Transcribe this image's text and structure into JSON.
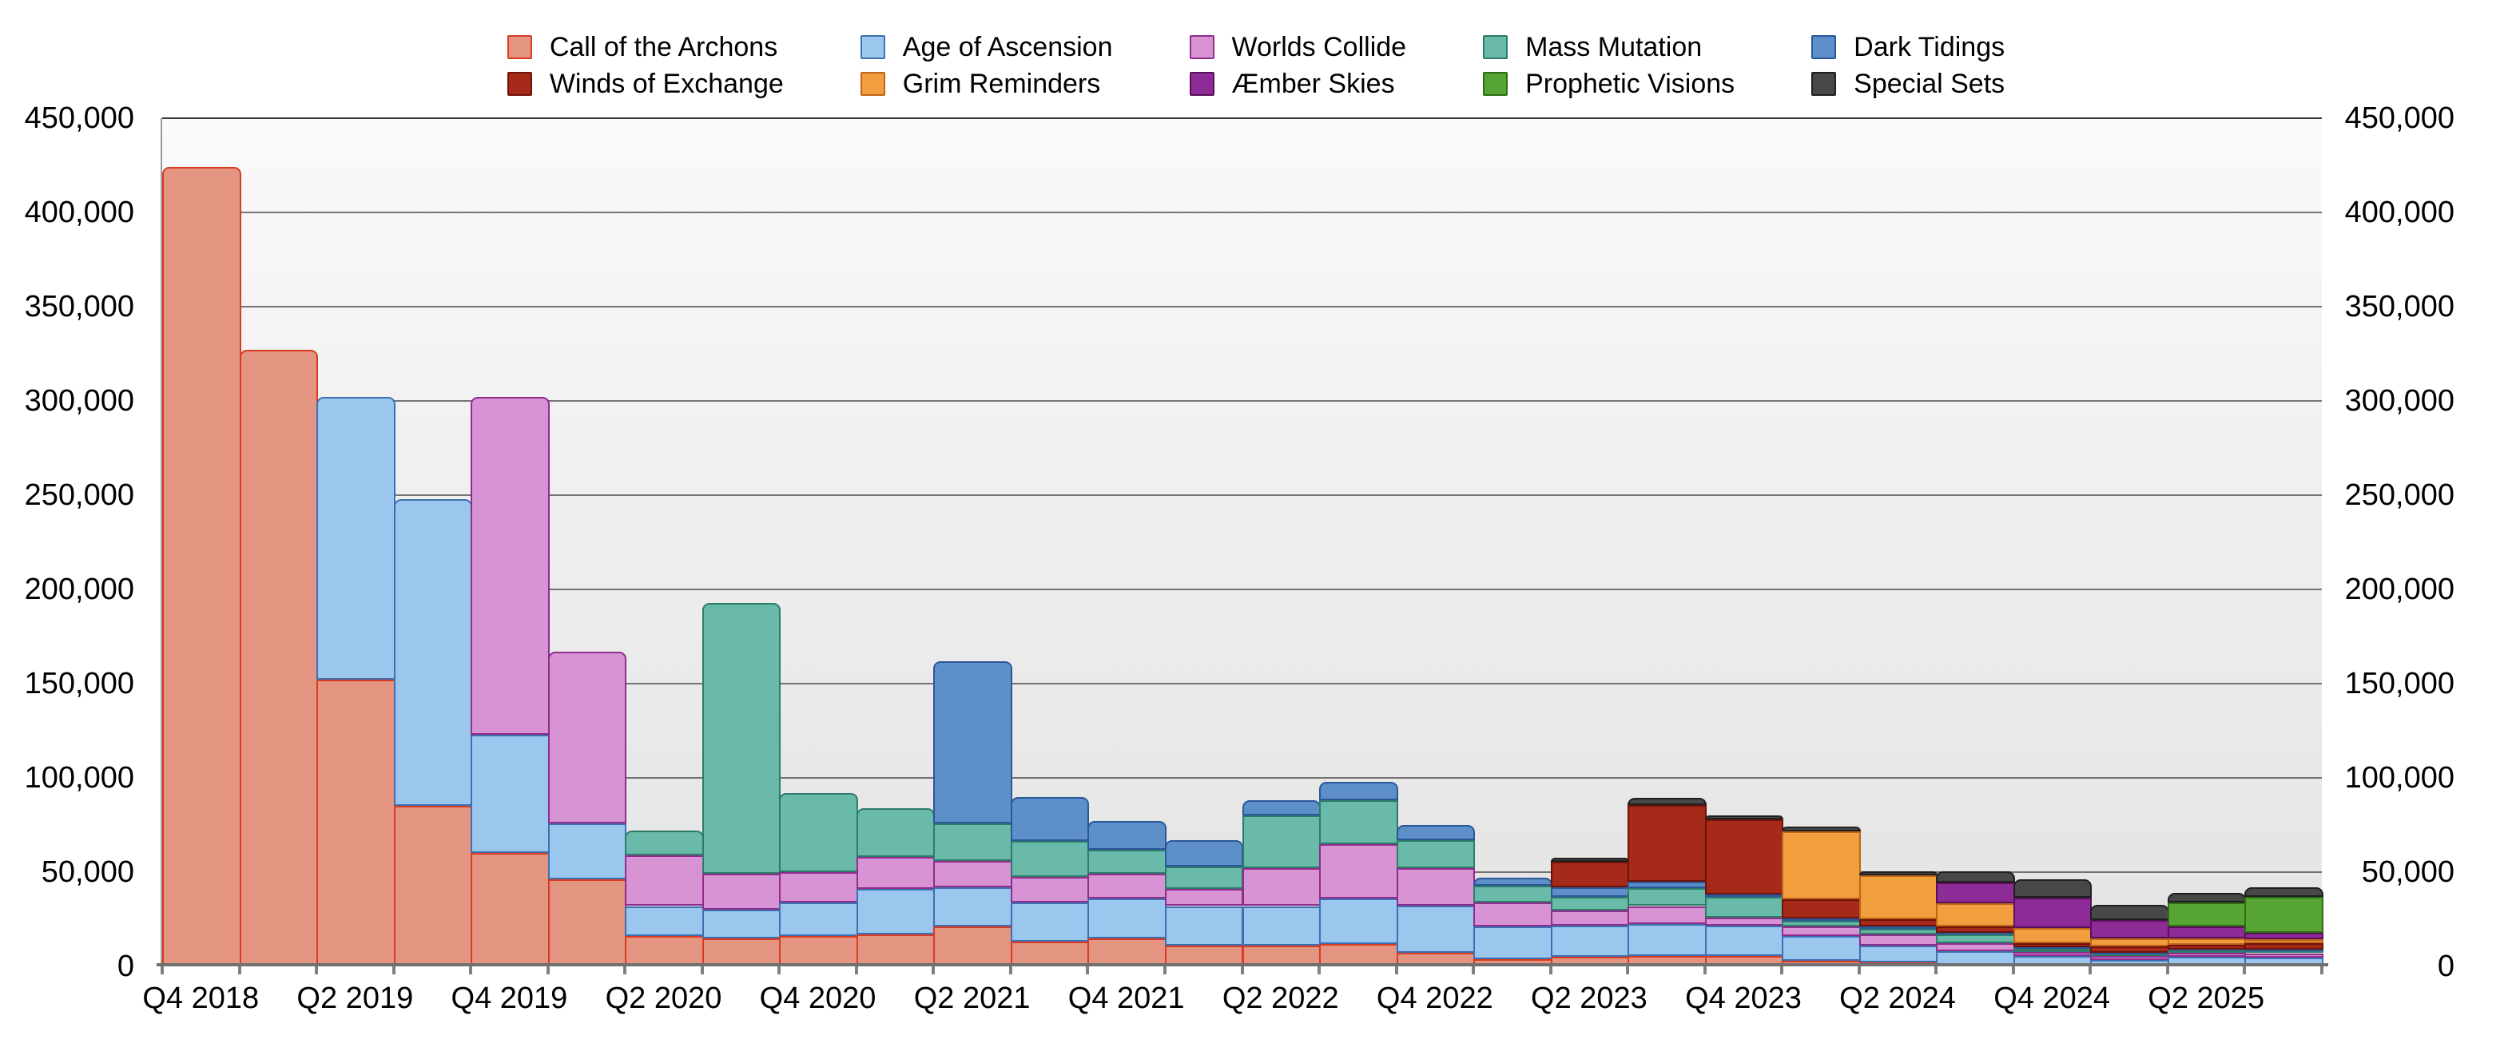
{
  "page": {
    "background": "#ffffff"
  },
  "axis_colors": {
    "gridline": "#4a4a4a",
    "top_gridline": "#3a3a3a",
    "axis_line": "#707070",
    "tick": "#808080",
    "label": "#000000"
  },
  "chart_data": {
    "type": "bar",
    "stacked": true,
    "title": "",
    "xlabel": "",
    "ylabel": "",
    "grid": "horizontal",
    "legend_position": "top",
    "legend_rows": 2,
    "ylim": [
      0,
      450000
    ],
    "y_tick_step": 50000,
    "y_tick_labels": [
      "0",
      "50,000",
      "100,000",
      "150,000",
      "200,000",
      "250,000",
      "300,000",
      "350,000",
      "400,000",
      "450,000"
    ],
    "x": [
      "Q4 2018",
      "Q1 2019",
      "Q2 2019",
      "Q3 2019",
      "Q4 2019",
      "Q1 2020",
      "Q2 2020",
      "Q3 2020",
      "Q4 2020",
      "Q1 2021",
      "Q2 2021",
      "Q3 2021",
      "Q4 2021",
      "Q1 2022",
      "Q2 2022",
      "Q3 2022",
      "Q4 2022",
      "Q1 2023",
      "Q2 2023",
      "Q3 2023",
      "Q4 2023",
      "Q1 2024",
      "Q2 2024",
      "Q3 2024",
      "Q4 2024",
      "Q1 2025",
      "Q2 2025",
      "Q3 2025"
    ],
    "x_tick_label_every": 2,
    "x_tick_labels_shown": [
      "Q4 2018",
      "Q2 2019",
      "Q4 2019",
      "Q2 2020",
      "Q4 2020",
      "Q2 2021",
      "Q4 2021",
      "Q2 2022",
      "Q4 2022",
      "Q2 2023",
      "Q4 2023",
      "Q2 2024",
      "Q4 2024",
      "Q2 2025"
    ],
    "series": [
      {
        "name": "Call of the Archons",
        "fill": "#E39582",
        "stroke": "#D93B22",
        "values": [
          424000,
          327000,
          152000,
          85000,
          60000,
          46000,
          16000,
          15000,
          16000,
          17000,
          21000,
          13000,
          15000,
          11000,
          11000,
          12000,
          7000,
          4000,
          5000,
          5500,
          5500,
          3000,
          2000,
          1000,
          1000,
          500,
          1000,
          500
        ]
      },
      {
        "name": "Age of Ascension",
        "fill": "#9BC7EF",
        "stroke": "#3D70B0",
        "values": [
          0,
          0,
          150000,
          163000,
          63000,
          30000,
          16000,
          15000,
          18000,
          24000,
          21000,
          21000,
          21000,
          21000,
          21000,
          24000,
          25000,
          17000,
          16500,
          17000,
          16000,
          13000,
          9000,
          7000,
          4500,
          3000,
          4000,
          4000
        ]
      },
      {
        "name": "Worlds Collide",
        "fill": "#D893D5",
        "stroke": "#8F2C8C",
        "values": [
          0,
          0,
          0,
          0,
          179000,
          91000,
          27000,
          19000,
          16000,
          17000,
          14000,
          13500,
          13000,
          9000,
          20000,
          29000,
          20000,
          13000,
          8000,
          9500,
          4500,
          5000,
          6000,
          4500,
          2000,
          2000,
          2000,
          2500
        ]
      },
      {
        "name": "Mass Mutation",
        "fill": "#69BAA8",
        "stroke": "#2F7B6B",
        "values": [
          0,
          0,
          0,
          0,
          0,
          0,
          13000,
          144000,
          42000,
          26000,
          20000,
          19000,
          13000,
          12000,
          28000,
          23000,
          15000,
          9000,
          7500,
          9500,
          11000,
          3000,
          3000,
          4500,
          2000,
          1000,
          1500,
          1000
        ]
      },
      {
        "name": "Dark Tidings",
        "fill": "#5D90C8",
        "stroke": "#2B579B",
        "values": [
          0,
          0,
          0,
          0,
          0,
          0,
          0,
          0,
          0,
          0,
          86000,
          23500,
          15000,
          14000,
          8000,
          10000,
          8000,
          4000,
          5000,
          3500,
          1000,
          1500,
          1000,
          1000,
          500,
          500,
          500,
          1000
        ]
      },
      {
        "name": "Winds of Exchange",
        "fill": "#A62A1A",
        "stroke": "#6E130A",
        "values": [
          0,
          0,
          0,
          0,
          0,
          0,
          0,
          0,
          0,
          0,
          0,
          0,
          0,
          0,
          0,
          0,
          0,
          0,
          13500,
          40500,
          40000,
          10000,
          4000,
          3000,
          2500,
          3500,
          2500,
          3500
        ]
      },
      {
        "name": "Grim Reminders",
        "fill": "#F09E3E",
        "stroke": "#BE651B",
        "values": [
          0,
          0,
          0,
          0,
          0,
          0,
          0,
          0,
          0,
          0,
          0,
          0,
          0,
          0,
          0,
          0,
          0,
          0,
          0,
          0,
          0,
          36000,
          23500,
          12500,
          8000,
          4500,
          3500,
          2000
        ]
      },
      {
        "name": "Æmber Skies",
        "fill": "#8D2C96",
        "stroke": "#581159",
        "values": [
          0,
          0,
          0,
          0,
          0,
          0,
          0,
          0,
          0,
          0,
          0,
          0,
          0,
          0,
          0,
          0,
          0,
          0,
          0,
          0,
          0,
          0,
          0,
          11000,
          16000,
          9500,
          6000,
          3500
        ]
      },
      {
        "name": "Prophetic Visions",
        "fill": "#56A534",
        "stroke": "#2F6E15",
        "values": [
          0,
          0,
          0,
          0,
          0,
          0,
          0,
          0,
          0,
          0,
          0,
          0,
          0,
          0,
          0,
          0,
          0,
          0,
          0,
          0,
          0,
          0,
          0,
          0,
          0,
          0,
          13000,
          19000
        ]
      },
      {
        "name": "Special Sets",
        "fill": "#484848",
        "stroke": "#1F1F1F",
        "values": [
          0,
          0,
          0,
          0,
          0,
          0,
          0,
          0,
          0,
          0,
          0,
          0,
          0,
          0,
          0,
          0,
          0,
          0,
          2000,
          4000,
          2000,
          2500,
          2000,
          6000,
          9500,
          8000,
          5000,
          5000
        ]
      }
    ]
  }
}
